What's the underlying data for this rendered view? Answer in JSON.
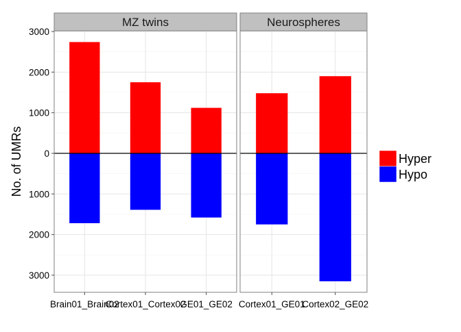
{
  "chart_data": {
    "type": "bar",
    "stacked": true,
    "diverging": true,
    "ylabel": "No. of UMRs",
    "xlabel": "",
    "ylim": [
      -3200,
      3000
    ],
    "yticks": [
      3000,
      2000,
      1000,
      0,
      -1000,
      -2000,
      -3000
    ],
    "ytick_labels": [
      "3000",
      "2000",
      "1000",
      "0",
      "1000",
      "2000",
      "3000"
    ],
    "grid": true,
    "legend": {
      "position": "right",
      "entries": [
        {
          "label": "Hyper",
          "color": "#ff0000"
        },
        {
          "label": "Hypo",
          "color": "#0000ff"
        }
      ]
    },
    "facets": [
      {
        "title": "MZ twins",
        "categories": [
          "Brain01_Brain02",
          "Cortex01_Cortex02",
          "GE01_GE02"
        ],
        "series": [
          {
            "name": "Hyper",
            "color": "#ff0000",
            "values": [
              2740,
              1750,
              1120
            ]
          },
          {
            "name": "Hypo",
            "color": "#0000ff",
            "values": [
              -1720,
              -1390,
              -1580
            ]
          }
        ]
      },
      {
        "title": "Neurospheres",
        "categories": [
          "Cortex01_GE01",
          "Cortex02_GE02"
        ],
        "series": [
          {
            "name": "Hyper",
            "color": "#ff0000",
            "values": [
              1480,
              1900
            ]
          },
          {
            "name": "Hypo",
            "color": "#0000ff",
            "values": [
              -1750,
              -3150
            ]
          }
        ]
      }
    ]
  }
}
